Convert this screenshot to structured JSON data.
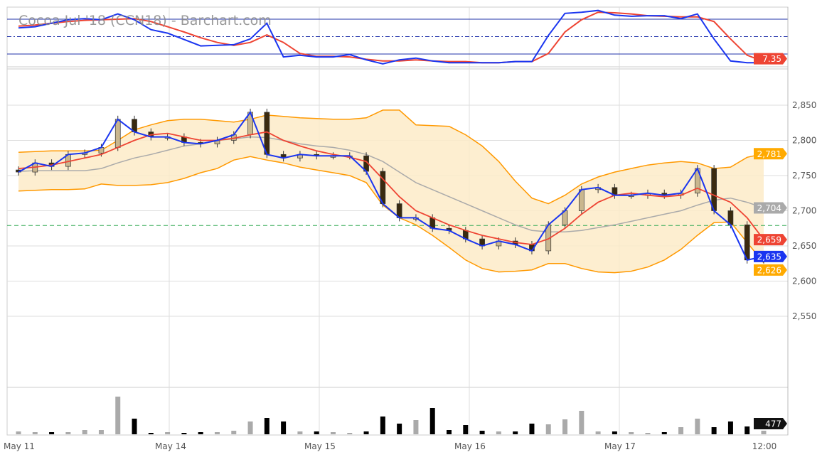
{
  "chart_data": {
    "type": "candlestick",
    "title": "Cocoa Jul '18 (CCN18) - Barchart.com",
    "x_labels": [
      "May 11",
      "May 14",
      "May 15",
      "May 16",
      "May 17",
      "12:00"
    ],
    "price_axis": {
      "ticks": [
        2850,
        2800,
        2750,
        2700,
        2650,
        2600,
        2550
      ],
      "ylim": [
        2500,
        2860
      ]
    },
    "reference_line": 2679,
    "close": [
      2755,
      2768,
      2763,
      2780,
      2782,
      2790,
      2830,
      2812,
      2805,
      2805,
      2797,
      2795,
      2800,
      2808,
      2840,
      2780,
      2775,
      2780,
      2778,
      2778,
      2778,
      2756,
      2710,
      2690,
      2690,
      2675,
      2672,
      2660,
      2650,
      2657,
      2652,
      2643,
      2680,
      2700,
      2730,
      2733,
      2722,
      2722,
      2725,
      2722,
      2725,
      2760,
      2700,
      2680,
      2630,
      2635
    ],
    "moving_average": [
      2760,
      2762,
      2765,
      2770,
      2775,
      2780,
      2790,
      2800,
      2808,
      2810,
      2805,
      2800,
      2800,
      2803,
      2808,
      2812,
      2800,
      2792,
      2785,
      2780,
      2776,
      2770,
      2745,
      2720,
      2700,
      2690,
      2680,
      2672,
      2665,
      2660,
      2655,
      2652,
      2660,
      2675,
      2695,
      2712,
      2722,
      2725,
      2722,
      2720,
      2722,
      2732,
      2722,
      2712,
      2690,
      2659
    ],
    "bollinger_upper": [
      2783,
      2784,
      2785,
      2785,
      2785,
      2786,
      2800,
      2815,
      2822,
      2828,
      2830,
      2830,
      2828,
      2826,
      2830,
      2836,
      2834,
      2832,
      2831,
      2830,
      2830,
      2832,
      2843,
      2843,
      2822,
      2821,
      2820,
      2808,
      2792,
      2770,
      2742,
      2718,
      2710,
      2722,
      2738,
      2748,
      2755,
      2760,
      2765,
      2768,
      2770,
      2768,
      2760,
      2762,
      2776,
      2781
    ],
    "bollinger_middle": [
      2756,
      2757,
      2757,
      2757,
      2757,
      2760,
      2768,
      2775,
      2780,
      2786,
      2792,
      2795,
      2800,
      2802,
      2805,
      2804,
      2800,
      2795,
      2792,
      2790,
      2786,
      2780,
      2770,
      2755,
      2740,
      2730,
      2720,
      2710,
      2700,
      2690,
      2680,
      2672,
      2670,
      2670,
      2672,
      2676,
      2680,
      2685,
      2690,
      2695,
      2700,
      2708,
      2715,
      2718,
      2712,
      2704
    ],
    "bollinger_lower": [
      2728,
      2729,
      2730,
      2730,
      2731,
      2738,
      2736,
      2736,
      2737,
      2740,
      2746,
      2754,
      2760,
      2772,
      2777,
      2772,
      2768,
      2762,
      2758,
      2754,
      2750,
      2740,
      2708,
      2690,
      2680,
      2665,
      2648,
      2630,
      2618,
      2613,
      2614,
      2616,
      2625,
      2625,
      2618,
      2613,
      2612,
      2614,
      2620,
      2630,
      2645,
      2665,
      2683,
      2684,
      2655,
      2626
    ],
    "volume": [
      380,
      285,
      285,
      285,
      570,
      570,
      5035,
      2090,
      190,
      285,
      190,
      285,
      285,
      475,
      1710,
      2185,
      1710,
      380,
      380,
      285,
      190,
      380,
      2375,
      1425,
      1900,
      3515,
      570,
      1235,
      475,
      380,
      380,
      1425,
      1330,
      1995,
      3135,
      380,
      380,
      285,
      190,
      285,
      950,
      2090,
      950,
      1710,
      1045,
      477
    ],
    "stochastic_k": [
      65,
      67,
      73,
      79,
      81,
      79,
      89,
      79,
      62,
      56,
      45,
      34,
      35,
      36,
      46,
      73,
      15,
      18,
      15,
      15,
      19,
      10,
      3,
      10,
      13,
      8,
      5,
      5,
      5,
      5,
      7,
      7,
      52,
      90,
      92,
      95,
      87,
      85,
      86,
      86,
      81,
      89,
      46,
      8,
      5,
      5
    ],
    "stochastic_d": [
      68,
      70,
      73,
      76,
      78,
      79,
      80,
      81,
      76,
      67,
      58,
      48,
      40,
      35,
      40,
      53,
      40,
      21,
      16,
      16,
      15,
      11,
      8,
      8,
      10,
      8,
      7,
      7,
      5,
      5,
      7,
      7,
      21,
      58,
      79,
      92,
      91,
      89,
      86,
      85,
      84,
      84,
      76,
      46,
      18,
      7
    ],
    "stochastic_levels": [
      80,
      50,
      20
    ],
    "last_values": {
      "stochastic": "7.35",
      "upper": "2,781",
      "middle": "2,704",
      "ma": "2,659",
      "close": "2,635",
      "lower": "2,626",
      "volume": "477"
    },
    "colors": {
      "close": "#1a35f0",
      "ma": "#ee4433",
      "band": "#ff9900",
      "band_fill": "#fdebc8",
      "middle": "#aaaaaa",
      "up": "#c9b68e",
      "down": "#3a2a10",
      "vol_up": "#aaaaaa",
      "vol_down": "#000000",
      "ref": "#33aa55"
    }
  }
}
